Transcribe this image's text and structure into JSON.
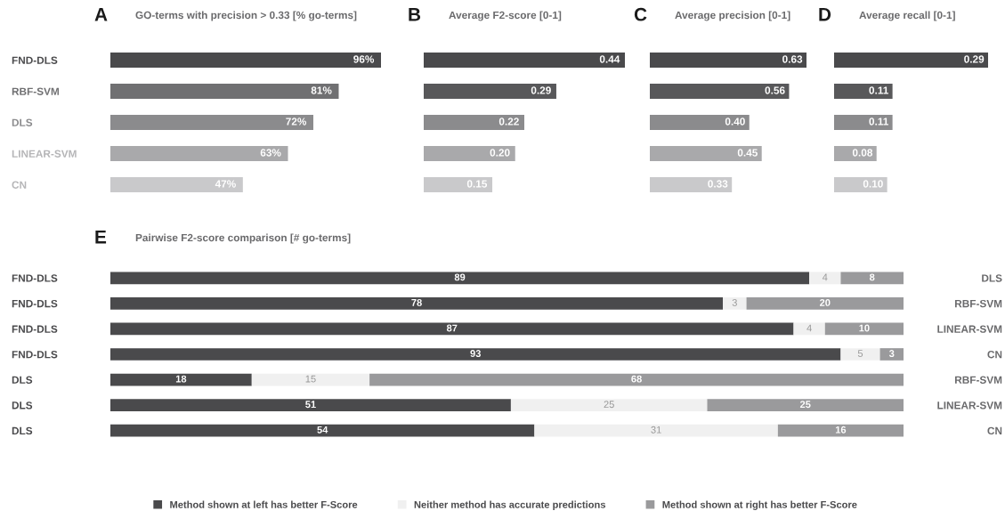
{
  "chart_data": [
    {
      "type": "bar",
      "orientation": "horizontal",
      "title": "A",
      "subtitle": "GO-terms with precision > 0.33 [% go-terms]",
      "tick_labels": "y",
      "categories": [
        "FND-DLS",
        "RBF-SVM",
        "DLS",
        "LINEAR-SVM",
        "CN"
      ],
      "values": [
        96,
        81,
        72,
        63,
        47
      ],
      "value_labels": [
        "96%",
        "81%",
        "72%",
        "63%",
        "47%"
      ],
      "colors": [
        "#4a4a4c",
        "#707072",
        "#8b8b8d",
        "#a9a9ab",
        "#c9c9cb"
      ]
    },
    {
      "type": "bar",
      "orientation": "horizontal",
      "title": "B",
      "subtitle": "Average F2-score [0-1]",
      "tick_labels": false,
      "categories": [
        null,
        null,
        null,
        null,
        null
      ],
      "values": [
        0.44,
        0.29,
        0.22,
        0.2,
        0.15
      ],
      "value_labels": [
        "0.44",
        "0.29",
        "0.22",
        "0.20",
        "0.15"
      ],
      "colors": [
        "#4a4a4c",
        "#58585a",
        "#8b8b8d",
        "#a9a9ab",
        "#c9c9cb"
      ]
    },
    {
      "type": "bar",
      "orientation": "horizontal",
      "title": "C",
      "subtitle": "Average precision [0-1]",
      "tick_labels": false,
      "categories": [
        null,
        null,
        null,
        null,
        null
      ],
      "values": [
        0.63,
        0.56,
        0.4,
        0.45,
        0.33
      ],
      "value_labels": [
        "0.63",
        "0.56",
        "0.40",
        "0.45",
        "0.33"
      ],
      "colors": [
        "#4a4a4c",
        "#58585a",
        "#8b8b8d",
        "#a9a9ab",
        "#c9c9cb"
      ]
    },
    {
      "type": "bar",
      "orientation": "horizontal",
      "title": "D",
      "subtitle": "Average recall [0-1]",
      "tick_labels": false,
      "categories": [
        null,
        null,
        null,
        null,
        null
      ],
      "values": [
        0.29,
        0.11,
        0.11,
        0.08,
        0.1
      ],
      "value_labels": [
        "0.29",
        "0.11",
        "0.11",
        "0.08",
        "0.10"
      ],
      "colors": [
        "#4a4a4c",
        "#58585a",
        "#8b8b8d",
        "#a9a9ab",
        "#c9c9cb"
      ]
    },
    {
      "type": "bar",
      "orientation": "horizontal",
      "stacked": true,
      "title": "E",
      "subtitle": "Pairwise F2-score comparison [# go-terms]",
      "tick_labels": "y",
      "categories": [
        "FND-DLS",
        "FND-DLS",
        "FND-DLS",
        "FND-DLS",
        "DLS",
        "DLS",
        "DLS"
      ],
      "y2_categories": [
        "DLS",
        "RBF-SVM",
        "LINEAR-SVM",
        "CN",
        "RBF-SVM",
        "LINEAR-SVM",
        "CN"
      ],
      "data_labels": true,
      "legend": "bottom",
      "series": [
        {
          "name": "Method shown at left has better F-Score",
          "color": "#4a4a4c",
          "values": [
            89,
            78,
            87,
            93,
            18,
            51,
            54
          ]
        },
        {
          "name": "Neither method has accurate predictions",
          "color": "#f0f0f0",
          "values": [
            4,
            3,
            4,
            5,
            15,
            25,
            31
          ]
        },
        {
          "name": "Method shown at right has better F-Score",
          "color": "#9a9a9c",
          "values": [
            8,
            20,
            10,
            3,
            68,
            25,
            16
          ]
        }
      ]
    }
  ]
}
